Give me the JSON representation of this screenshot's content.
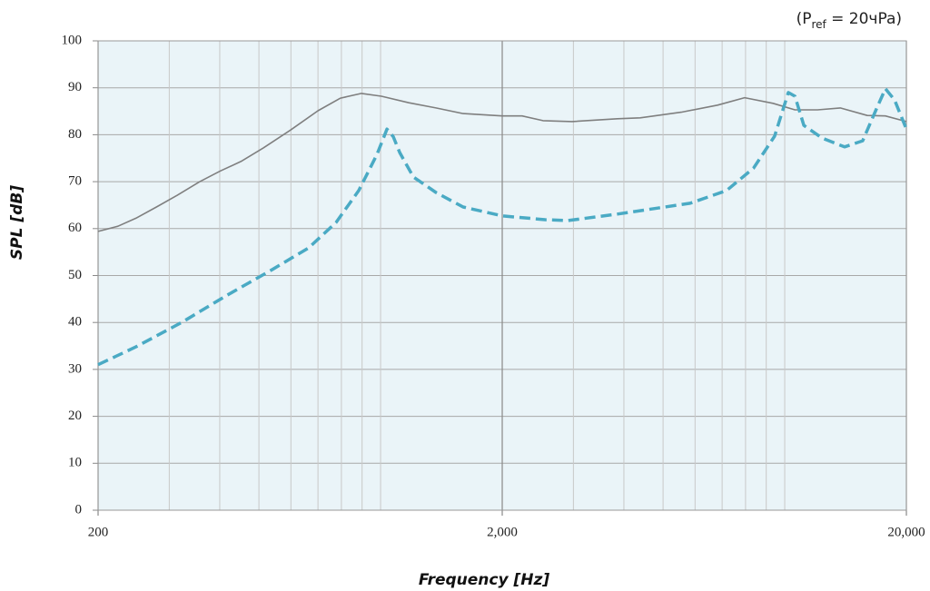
{
  "chart_data": {
    "type": "line",
    "annotation": {
      "before": "(P",
      "subscript": "ref",
      "after": " = 20чPa)"
    },
    "x_label": "Frequency [Hz]",
    "y_label": "SPL [dB]",
    "xscale": "log",
    "xlim": [
      200,
      20000
    ],
    "ylim": [
      0,
      100
    ],
    "xticks": [
      {
        "value": 200,
        "label": "200"
      },
      {
        "value": 2000,
        "label": "2,000"
      },
      {
        "value": 20000,
        "label": "20,000"
      }
    ],
    "xgrid_minor": [
      300,
      400,
      500,
      600,
      700,
      800,
      900,
      1000,
      3000,
      4000,
      5000,
      6000,
      7000,
      8000,
      9000,
      10000
    ],
    "yticks": [
      0,
      10,
      20,
      30,
      40,
      50,
      60,
      70,
      80,
      90,
      100
    ],
    "grid": true,
    "background": "#eaf4f8",
    "series": [
      {
        "color": "#7f7f7f",
        "dash": false,
        "x": [
          200,
          224,
          248,
          279,
          314,
          357,
          402,
          451,
          513,
          599,
          700,
          796,
          897,
          1005,
          1175,
          1371,
          1600,
          2000,
          2240,
          2523,
          2978,
          3855,
          4390,
          5545,
          6820,
          7960,
          9350,
          10600,
          12060,
          13720,
          16000,
          17750,
          20000
        ],
        "values": [
          59.4,
          60.5,
          62.2,
          64.6,
          67.1,
          70,
          72.3,
          74.3,
          77.2,
          81,
          85.1,
          87.8,
          88.8,
          88.2,
          86.8,
          85.7,
          84.5,
          84,
          84,
          83,
          82.8,
          83.4,
          83.6,
          84.8,
          86.3,
          87.9,
          86.7,
          85.3,
          85.3,
          85.7,
          84.1,
          84,
          82.8
        ]
      },
      {
        "color": "#4aaac4",
        "dash": true,
        "x": [
          200,
          248,
          322,
          417,
          540,
          664,
          776,
          883,
          980,
          1037,
          1075,
          1115,
          1205,
          1371,
          1600,
          2000,
          2553,
          2905,
          3855,
          5834,
          7180,
          8377,
          9440,
          10205,
          10600,
          11150,
          12360,
          14060,
          15590,
          16860,
          17750,
          18700,
          20000
        ],
        "values": [
          31,
          34.8,
          40,
          45.8,
          51.3,
          55.9,
          61.3,
          68.1,
          75.8,
          81.2,
          79.6,
          76.2,
          71,
          67.7,
          64.6,
          62.7,
          61.9,
          61.7,
          63.1,
          65.4,
          68.1,
          72.9,
          79.7,
          89,
          88.2,
          82,
          79.3,
          77.4,
          78.7,
          85.5,
          89.8,
          87.4,
          81.2
        ]
      }
    ]
  }
}
